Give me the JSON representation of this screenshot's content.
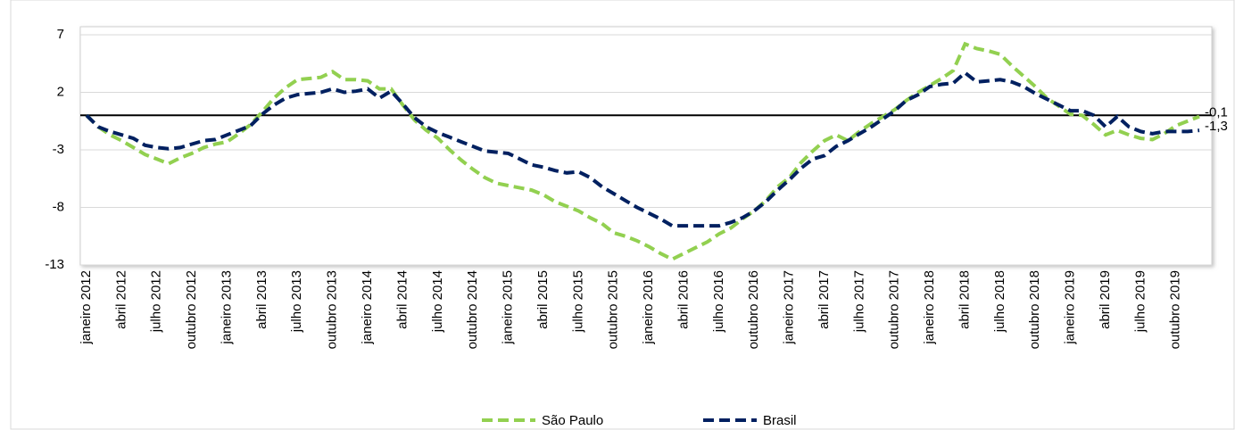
{
  "chart_data": {
    "type": "line",
    "categories": [
      "janeiro 2012",
      null,
      null,
      "abril 2012",
      null,
      null,
      "julho 2012",
      null,
      null,
      "outubro 2012",
      null,
      null,
      "janeiro 2013",
      null,
      null,
      "abril 2013",
      null,
      null,
      "julho 2013",
      null,
      null,
      "outubro 2013",
      null,
      null,
      "janeiro 2014",
      null,
      null,
      "abril 2014",
      null,
      null,
      "julho 2014",
      null,
      null,
      "outubro 2014",
      null,
      null,
      "janeiro 2015",
      null,
      null,
      "abril 2015",
      null,
      null,
      "julho 2015",
      null,
      null,
      "outubro 2015",
      null,
      null,
      "janeiro 2016",
      null,
      null,
      "abril 2016",
      null,
      null,
      "julho 2016",
      null,
      null,
      "outubro 2016",
      null,
      null,
      "janeiro 2017",
      null,
      null,
      "abril 2017",
      null,
      null,
      "julho 2017",
      null,
      null,
      "outubro 2017",
      null,
      null,
      "janeiro 2018",
      null,
      null,
      "abril 2018",
      null,
      null,
      "julho 2018",
      null,
      null,
      "outubro 2018",
      null,
      null,
      "janeiro 2019",
      null,
      null,
      "abril 2019",
      null,
      null,
      "julho 2019",
      null,
      null,
      "outubro 2019",
      null,
      null
    ],
    "series": [
      {
        "name": "São Paulo",
        "color": "#92d050",
        "values": [
          0,
          -1.0,
          -1.7,
          -2.2,
          -2.8,
          -3.4,
          -3.8,
          -4.2,
          -3.7,
          -3.3,
          -2.8,
          -2.5,
          -2.3,
          -1.6,
          -0.8,
          0.3,
          1.5,
          2.4,
          3.1,
          3.2,
          3.3,
          3.8,
          3.1,
          3.1,
          3.0,
          2.3,
          2.3,
          0.9,
          -0.4,
          -1.3,
          -2.0,
          -3.0,
          -3.9,
          -4.7,
          -5.4,
          -5.9,
          -6.1,
          -6.3,
          -6.5,
          -6.9,
          -7.5,
          -7.9,
          -8.3,
          -8.9,
          -9.4,
          -10.2,
          -10.5,
          -10.9,
          -11.4,
          -12.0,
          -12.5,
          -12.0,
          -11.5,
          -11.0,
          -10.3,
          -9.8,
          -9.0,
          -8.3,
          -7.4,
          -6.2,
          -5.4,
          -4.1,
          -3.1,
          -2.2,
          -1.7,
          -2.2,
          -1.4,
          -0.7,
          -0.1,
          0.5,
          1.3,
          2.0,
          2.6,
          3.2,
          3.9,
          6.2,
          5.8,
          5.6,
          5.3,
          4.3,
          3.4,
          2.5,
          1.5,
          0.8,
          0.1,
          0,
          -0.8,
          -1.7,
          -1.3,
          -1.7,
          -2.0,
          -2.1,
          -1.6,
          -0.9,
          -0.5,
          -0.1
        ],
        "value_labels": [
          null,
          null,
          null,
          null,
          null,
          null,
          null,
          null,
          null,
          null,
          null,
          null,
          null,
          null,
          null,
          null,
          null,
          null,
          null,
          null,
          null,
          null,
          null,
          null,
          null,
          null,
          null,
          null,
          null,
          null,
          null,
          null,
          null,
          null,
          null,
          null,
          null,
          null,
          null,
          null,
          null,
          null,
          null,
          null,
          null,
          null,
          null,
          null,
          null,
          null,
          null,
          null,
          null,
          null,
          null,
          null,
          null,
          null,
          null,
          null,
          null,
          null,
          null,
          null,
          null,
          null,
          null,
          null,
          null,
          null,
          null,
          null,
          null,
          null,
          null,
          null,
          null,
          null,
          null,
          null,
          null,
          null,
          null,
          null,
          null,
          null,
          null,
          null,
          null,
          null,
          null,
          null,
          null,
          null,
          null,
          "-0,1"
        ]
      },
      {
        "name": "Brasil",
        "color": "#002060",
        "values": [
          0,
          -1.0,
          -1.4,
          -1.7,
          -2.0,
          -2.6,
          -2.8,
          -2.9,
          -2.8,
          -2.5,
          -2.2,
          -2.1,
          -1.7,
          -1.3,
          -0.9,
          0.1,
          0.9,
          1.5,
          1.8,
          1.9,
          2.0,
          2.3,
          2.0,
          2.1,
          2.3,
          1.5,
          2.1,
          1.0,
          -0.2,
          -1.0,
          -1.5,
          -1.9,
          -2.3,
          -2.7,
          -3.1,
          -3.2,
          -3.3,
          -3.8,
          -4.3,
          -4.5,
          -4.8,
          -5.0,
          -4.9,
          -5.4,
          -6.2,
          -6.8,
          -7.4,
          -8.0,
          -8.5,
          -9.0,
          -9.6,
          -9.6,
          -9.6,
          -9.6,
          -9.6,
          -9.3,
          -8.9,
          -8.3,
          -7.5,
          -6.5,
          -5.6,
          -4.6,
          -3.8,
          -3.5,
          -2.7,
          -2.2,
          -1.6,
          -1.0,
          -0.3,
          0.4,
          1.3,
          1.8,
          2.5,
          2.7,
          2.8,
          3.7,
          2.9,
          3.0,
          3.1,
          2.9,
          2.5,
          1.9,
          1.4,
          0.9,
          0.4,
          0.4,
          0,
          -1.0,
          -0.1,
          -1.0,
          -1.4,
          -1.6,
          -1.4,
          -1.4,
          -1.4,
          -1.3
        ],
        "value_labels": [
          null,
          null,
          null,
          null,
          null,
          null,
          null,
          null,
          null,
          null,
          null,
          null,
          null,
          null,
          null,
          null,
          null,
          null,
          null,
          null,
          null,
          null,
          null,
          null,
          null,
          null,
          null,
          null,
          null,
          null,
          null,
          null,
          null,
          null,
          null,
          null,
          null,
          null,
          null,
          null,
          null,
          null,
          null,
          null,
          null,
          null,
          null,
          null,
          null,
          null,
          null,
          null,
          null,
          null,
          null,
          null,
          null,
          null,
          null,
          null,
          null,
          null,
          null,
          null,
          null,
          null,
          null,
          null,
          null,
          null,
          null,
          null,
          null,
          null,
          null,
          null,
          null,
          null,
          null,
          null,
          null,
          null,
          null,
          null,
          null,
          null,
          null,
          null,
          null,
          null,
          null,
          null,
          null,
          null,
          null,
          "-1,3"
        ]
      }
    ],
    "ylim": [
      -13,
      7
    ],
    "yticks": [
      -13,
      -8,
      -3,
      2,
      7
    ],
    "grid": true,
    "zero_line": true,
    "legend": "bottom"
  }
}
